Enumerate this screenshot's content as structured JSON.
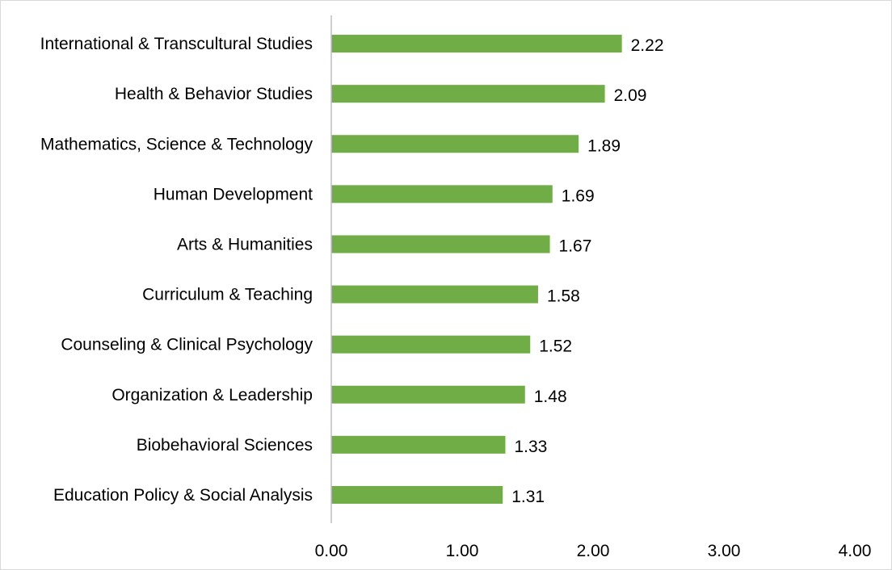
{
  "chart_data": {
    "type": "bar",
    "orientation": "horizontal",
    "categories": [
      "International & Transcultural Studies",
      "Health & Behavior Studies",
      "Mathematics, Science & Technology",
      "Human Development",
      "Arts & Humanities",
      "Curriculum & Teaching",
      "Counseling & Clinical Psychology",
      "Organization & Leadership",
      "Biobehavioral Sciences",
      "Education Policy & Social Analysis"
    ],
    "values": [
      2.22,
      2.09,
      1.89,
      1.69,
      1.67,
      1.58,
      1.52,
      1.48,
      1.33,
      1.31
    ],
    "value_labels": [
      "2.22",
      "2.09",
      "1.89",
      "1.69",
      "1.67",
      "1.58",
      "1.52",
      "1.48",
      "1.33",
      "1.31"
    ],
    "title": "",
    "xlabel": "",
    "ylabel": "",
    "xlim": [
      0,
      4
    ],
    "x_ticks": [
      0,
      1,
      2,
      3,
      4
    ],
    "x_tick_labels": [
      "0.00",
      "1.00",
      "2.00",
      "3.00",
      "4.00"
    ],
    "grid": false,
    "legend": "none",
    "colors": {
      "bar": "#70ad47",
      "axis": "#bfbfbf",
      "text": "#000000",
      "border": "#d9d9d9"
    }
  }
}
